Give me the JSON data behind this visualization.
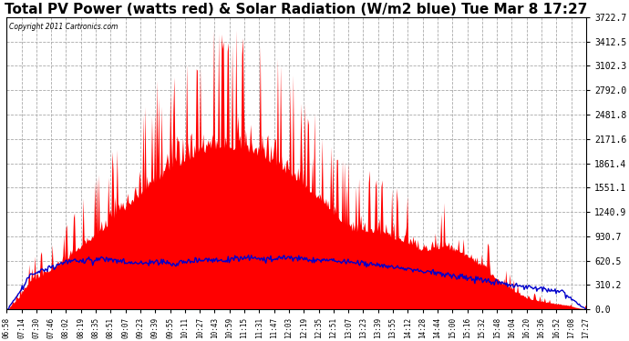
{
  "title": "Total PV Power (watts red) & Solar Radiation (W/m2 blue) Tue Mar 8 17:27",
  "copyright_text": "Copyright 2011 Cartronics.com",
  "yticks": [
    0.0,
    310.2,
    620.5,
    930.7,
    1240.9,
    1551.1,
    1861.4,
    2171.6,
    2481.8,
    2792.0,
    3102.3,
    3412.5,
    3722.7
  ],
  "ymax": 3722.7,
  "ymin": 0.0,
  "plot_bg_color": "#ffffff",
  "fig_bg_color": "#ffffff",
  "red_color": "#ff0000",
  "blue_color": "#0000cc",
  "title_fontsize": 11,
  "xtick_labels": [
    "06:58",
    "07:14",
    "07:30",
    "07:46",
    "08:02",
    "08:19",
    "08:35",
    "08:51",
    "09:07",
    "09:23",
    "09:39",
    "09:55",
    "10:11",
    "10:27",
    "10:43",
    "10:59",
    "11:15",
    "11:31",
    "11:47",
    "12:03",
    "12:19",
    "12:35",
    "12:51",
    "13:07",
    "13:23",
    "13:39",
    "13:55",
    "14:12",
    "14:28",
    "14:44",
    "15:00",
    "15:16",
    "15:32",
    "15:48",
    "16:04",
    "16:20",
    "16:36",
    "16:52",
    "17:08",
    "17:27"
  ],
  "n_points": 600,
  "seed": 12345
}
